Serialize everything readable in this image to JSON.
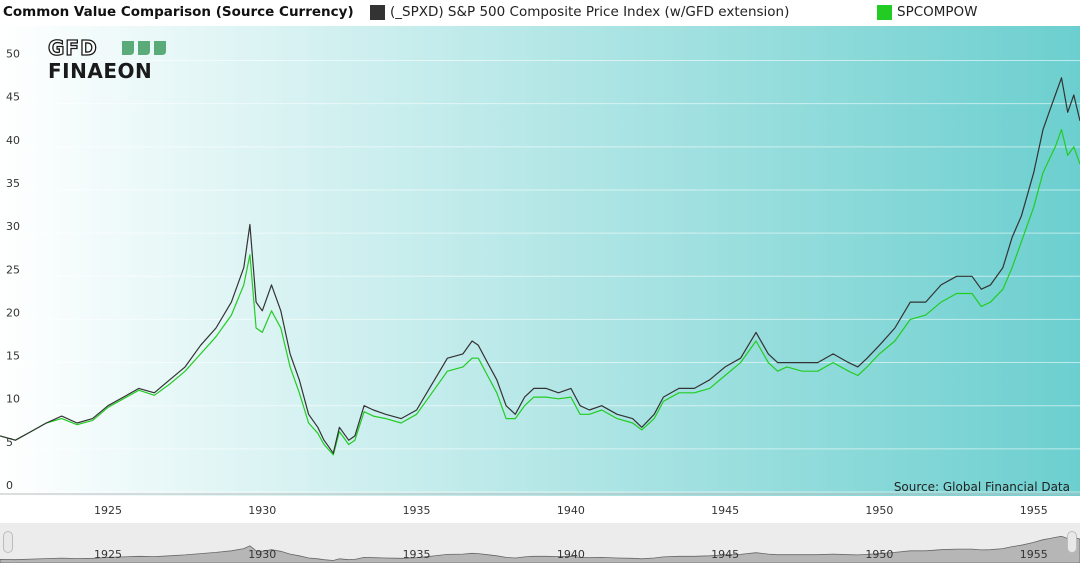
{
  "header": {
    "title": "Common Value Comparison (Source Currency)",
    "legend": [
      {
        "label": "(_SPXD) S&P 500 Composite Price Index (w/GFD extension)",
        "color": "#333333"
      },
      {
        "label": "SPCOMPOW",
        "color": "#22cc22"
      }
    ]
  },
  "logo": {
    "line1": "GFD",
    "line2": "FINAEON"
  },
  "source_note": "Source: Global Financial Data",
  "navigator": {
    "labels": [
      "1925",
      "1930",
      "1935",
      "1940",
      "1945",
      "1950",
      "1955"
    ]
  },
  "colors": {
    "bg_left": "#ffffff",
    "bg_right": "#6ccfcf",
    "series1": "#333333",
    "series2": "#22cc22",
    "logo_text": "#1a1a1a",
    "logo_green": "#5aaa7a"
  },
  "chart_data": {
    "type": "line",
    "xlim": [
      1921.5,
      1956.5
    ],
    "ylim": [
      0,
      54
    ],
    "yticks": [
      0,
      5,
      10,
      15,
      20,
      25,
      30,
      35,
      40,
      45,
      50
    ],
    "xticks": [
      1925,
      1930,
      1935,
      1940,
      1945,
      1950,
      1955
    ],
    "grid": "horizontal",
    "legend_position": "top",
    "series": [
      {
        "name": "(_SPXD) S&P 500 Composite Price Index (w/GFD extension)",
        "color": "#333333",
        "x": [
          1921.5,
          1922.0,
          1922.5,
          1923.0,
          1923.5,
          1924.0,
          1924.5,
          1925.0,
          1925.5,
          1926.0,
          1926.5,
          1927.0,
          1927.5,
          1928.0,
          1928.5,
          1929.0,
          1929.4,
          1929.6,
          1929.8,
          1930.0,
          1930.3,
          1930.6,
          1930.9,
          1931.2,
          1931.5,
          1931.8,
          1932.0,
          1932.3,
          1932.5,
          1932.8,
          1933.0,
          1933.3,
          1933.6,
          1934.0,
          1934.5,
          1935.0,
          1935.5,
          1936.0,
          1936.5,
          1936.8,
          1937.0,
          1937.3,
          1937.6,
          1937.9,
          1938.2,
          1938.5,
          1938.8,
          1939.2,
          1939.6,
          1940.0,
          1940.3,
          1940.6,
          1941.0,
          1941.5,
          1942.0,
          1942.3,
          1942.7,
          1943.0,
          1943.5,
          1944.0,
          1944.5,
          1945.0,
          1945.5,
          1946.0,
          1946.4,
          1946.7,
          1947.0,
          1947.5,
          1948.0,
          1948.5,
          1949.0,
          1949.3,
          1949.6,
          1950.0,
          1950.5,
          1951.0,
          1951.5,
          1952.0,
          1952.5,
          1953.0,
          1953.3,
          1953.6,
          1954.0,
          1954.3,
          1954.6,
          1955.0,
          1955.3,
          1955.5,
          1955.7,
          1955.9,
          1956.1,
          1956.3,
          1956.5
        ],
        "values": [
          6.5,
          6.0,
          7.0,
          8.0,
          8.8,
          8.0,
          8.5,
          10.0,
          11.0,
          12.0,
          11.5,
          13.0,
          14.5,
          17.0,
          19.0,
          22.0,
          26.0,
          31.0,
          22.0,
          21.0,
          24.0,
          21.0,
          16.0,
          13.0,
          9.0,
          7.5,
          6.0,
          4.5,
          7.5,
          6.0,
          6.5,
          10.0,
          9.5,
          9.0,
          8.5,
          9.5,
          12.5,
          15.5,
          16.0,
          17.5,
          17.0,
          15.0,
          13.0,
          10.0,
          9.0,
          11.0,
          12.0,
          12.0,
          11.5,
          12.0,
          10.0,
          9.5,
          10.0,
          9.0,
          8.5,
          7.5,
          9.0,
          11.0,
          12.0,
          12.0,
          13.0,
          14.5,
          15.5,
          18.5,
          16.0,
          15.0,
          15.0,
          15.0,
          15.0,
          16.0,
          15.0,
          14.5,
          15.5,
          17.0,
          19.0,
          22.0,
          22.0,
          24.0,
          25.0,
          25.0,
          23.5,
          24.0,
          26.0,
          29.5,
          32.0,
          37.0,
          42.0,
          44.0,
          46.0,
          48.0,
          44.0,
          46.0,
          43.0
        ]
      },
      {
        "name": "SPCOMPOW",
        "color": "#22cc22",
        "x": [
          1921.5,
          1922.0,
          1922.5,
          1923.0,
          1923.5,
          1924.0,
          1924.5,
          1925.0,
          1925.5,
          1926.0,
          1926.5,
          1927.0,
          1927.5,
          1928.0,
          1928.5,
          1929.0,
          1929.4,
          1929.6,
          1929.8,
          1930.0,
          1930.3,
          1930.6,
          1930.9,
          1931.2,
          1931.5,
          1931.8,
          1932.0,
          1932.3,
          1932.5,
          1932.8,
          1933.0,
          1933.3,
          1933.6,
          1934.0,
          1934.5,
          1935.0,
          1935.5,
          1936.0,
          1936.5,
          1936.8,
          1937.0,
          1937.3,
          1937.6,
          1937.9,
          1938.2,
          1938.5,
          1938.8,
          1939.2,
          1939.6,
          1940.0,
          1940.3,
          1940.6,
          1941.0,
          1941.5,
          1942.0,
          1942.3,
          1942.7,
          1943.0,
          1943.5,
          1944.0,
          1944.5,
          1945.0,
          1945.5,
          1946.0,
          1946.4,
          1946.7,
          1947.0,
          1947.5,
          1948.0,
          1948.5,
          1949.0,
          1949.3,
          1949.6,
          1950.0,
          1950.5,
          1951.0,
          1951.5,
          1952.0,
          1952.5,
          1953.0,
          1953.3,
          1953.6,
          1954.0,
          1954.3,
          1954.6,
          1955.0,
          1955.3,
          1955.5,
          1955.7,
          1955.9,
          1956.1,
          1956.3,
          1956.5
        ],
        "values": [
          6.5,
          6.0,
          7.0,
          8.0,
          8.5,
          7.8,
          8.3,
          9.8,
          10.8,
          11.8,
          11.2,
          12.5,
          14.0,
          16.0,
          18.0,
          20.5,
          24.0,
          27.5,
          19.0,
          18.5,
          21.0,
          19.0,
          14.5,
          11.5,
          8.0,
          6.8,
          5.5,
          4.3,
          7.0,
          5.5,
          6.0,
          9.3,
          8.8,
          8.5,
          8.0,
          9.0,
          11.5,
          14.0,
          14.5,
          15.5,
          15.5,
          13.5,
          11.5,
          8.5,
          8.5,
          10.0,
          11.0,
          11.0,
          10.8,
          11.0,
          9.0,
          9.0,
          9.5,
          8.5,
          8.0,
          7.2,
          8.5,
          10.5,
          11.5,
          11.5,
          12.0,
          13.5,
          15.0,
          17.5,
          15.0,
          14.0,
          14.5,
          14.0,
          14.0,
          15.0,
          14.0,
          13.5,
          14.5,
          16.0,
          17.5,
          20.0,
          20.5,
          22.0,
          23.0,
          23.0,
          21.5,
          22.0,
          23.5,
          26.0,
          29.0,
          33.0,
          37.0,
          38.5,
          40.0,
          42.0,
          39.0,
          40.0,
          38.0
        ]
      }
    ]
  }
}
